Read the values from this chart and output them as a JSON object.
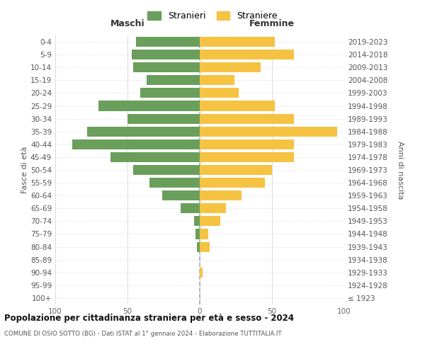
{
  "age_groups": [
    "100+",
    "95-99",
    "90-94",
    "85-89",
    "80-84",
    "75-79",
    "70-74",
    "65-69",
    "60-64",
    "55-59",
    "50-54",
    "45-49",
    "40-44",
    "35-39",
    "30-34",
    "25-29",
    "20-24",
    "15-19",
    "10-14",
    "5-9",
    "0-4"
  ],
  "birth_years": [
    "≤ 1923",
    "1924-1928",
    "1929-1933",
    "1934-1938",
    "1939-1943",
    "1944-1948",
    "1949-1953",
    "1954-1958",
    "1959-1963",
    "1964-1968",
    "1969-1973",
    "1974-1978",
    "1979-1983",
    "1984-1988",
    "1989-1993",
    "1994-1998",
    "1999-2003",
    "2004-2008",
    "2009-2013",
    "2014-2018",
    "2019-2023"
  ],
  "maschi": [
    0,
    0,
    0,
    0,
    2,
    3,
    4,
    13,
    26,
    35,
    46,
    62,
    88,
    78,
    50,
    70,
    41,
    37,
    46,
    47,
    44
  ],
  "femmine": [
    0,
    0,
    2,
    0,
    7,
    6,
    14,
    18,
    29,
    45,
    50,
    65,
    65,
    95,
    65,
    52,
    27,
    24,
    42,
    65,
    52
  ],
  "male_color": "#6a9f5b",
  "female_color": "#f5c242",
  "grid_color": "#cccccc",
  "dashed_line_color": "#aaaaaa",
  "title": "Popolazione per cittadinanza straniera per età e sesso - 2024",
  "subtitle": "COMUNE DI OSIO SOTTO (BG) - Dati ISTAT al 1° gennaio 2024 - Elaborazione TUTTITALIA.IT",
  "legend_maschi": "Stranieri",
  "legend_femmine": "Straniere",
  "xlabel_left": "Maschi",
  "xlabel_right": "Femmine",
  "ylabel_left": "Fasce di età",
  "ylabel_right": "Anni di nascita",
  "xlim": 100,
  "bg_color": "#ffffff"
}
